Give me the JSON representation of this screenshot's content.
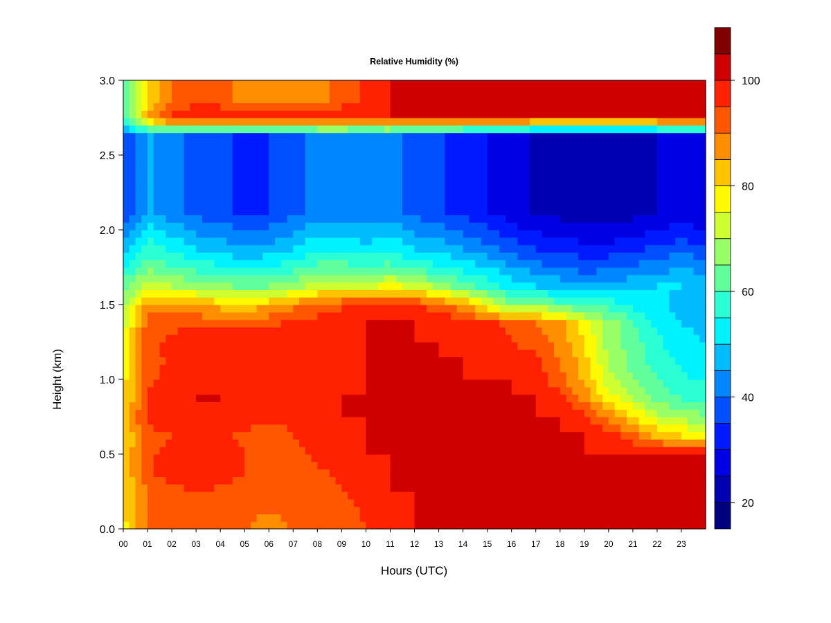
{
  "chart_data": {
    "type": "heatmap",
    "title": "Relative Humidity (%)",
    "xlabel": "Hours (UTC)",
    "ylabel": "Height (km)",
    "xlim": [
      0,
      24
    ],
    "ylim": [
      0.0,
      3.0
    ],
    "x_ticks": [
      "00",
      "01",
      "02",
      "03",
      "04",
      "05",
      "06",
      "07",
      "08",
      "09",
      "10",
      "11",
      "12",
      "13",
      "14",
      "15",
      "16",
      "17",
      "18",
      "19",
      "20",
      "21",
      "22",
      "23"
    ],
    "y_ticks": [
      "0.0",
      "0.5",
      "1.0",
      "1.5",
      "2.0",
      "2.5",
      "3.0"
    ],
    "colorbar": {
      "min": 15,
      "max": 100,
      "step": 5,
      "tick_labels": [
        "20",
        "40",
        "60",
        "80",
        "100"
      ],
      "colors": [
        "#00007f",
        "#0000b2",
        "#0000e5",
        "#001aff",
        "#0050ff",
        "#0086ff",
        "#00bcff",
        "#00f2ff",
        "#2bffd4",
        "#62ff9d",
        "#98ff67",
        "#ceff31",
        "#fffa00",
        "#ffc400",
        "#ff8d00",
        "#ff5700",
        "#ff2100",
        "#ce0000",
        "#800000"
      ]
    },
    "x_hours": [
      0,
      1,
      2,
      3,
      4,
      5,
      6,
      7,
      8,
      9,
      10,
      11,
      12,
      13,
      14,
      15,
      16,
      17,
      18,
      19,
      20,
      21,
      22,
      23,
      24
    ],
    "y_km": [
      0.0,
      0.125,
      0.25,
      0.375,
      0.5,
      0.625,
      0.75,
      0.875,
      1.0,
      1.125,
      1.25,
      1.375,
      1.5,
      1.625,
      1.75,
      1.875,
      2.0,
      2.125,
      2.25,
      2.375,
      2.5,
      2.625,
      2.75,
      2.875,
      3.0
    ],
    "rh_by_hour": [
      [
        78,
        90,
        93,
        94,
        92,
        90,
        89,
        90,
        90,
        92,
        95,
        99,
        100,
        100,
        100,
        100,
        100,
        100,
        100,
        100,
        100,
        100,
        100,
        100,
        100
      ],
      [
        80,
        90,
        92,
        94,
        93,
        91,
        90,
        91,
        92,
        93,
        96,
        99,
        100,
        100,
        100,
        100,
        100,
        100,
        100,
        100,
        100,
        100,
        100,
        100,
        100
      ],
      [
        80,
        90,
        93,
        95,
        94,
        92,
        91,
        92,
        93,
        95,
        97,
        100,
        100,
        100,
        100,
        100,
        100,
        100,
        100,
        100,
        100,
        100,
        100,
        100,
        100
      ],
      [
        80,
        94,
        97,
        99,
        98,
        95,
        93,
        93,
        94,
        96,
        98,
        100,
        100,
        100,
        100,
        100,
        100,
        100,
        100,
        100,
        100,
        100,
        100,
        100,
        100
      ],
      [
        80,
        94,
        97,
        99,
        98,
        95,
        93,
        94,
        96,
        98,
        100,
        100,
        100,
        100,
        100,
        100,
        100,
        100,
        100,
        100,
        100,
        100,
        100,
        100,
        100
      ],
      [
        80,
        92,
        95,
        97,
        96,
        94,
        93,
        95,
        97,
        99,
        100,
        100,
        100,
        100,
        100,
        100,
        100,
        100,
        100,
        100,
        98,
        92,
        84,
        80,
        80
      ],
      [
        80,
        97,
        100,
        100,
        99,
        97,
        96,
        96,
        98,
        100,
        100,
        100,
        100,
        100,
        100,
        100,
        100,
        100,
        100,
        96,
        88,
        80,
        72,
        68,
        66
      ],
      [
        78,
        96,
        99,
        100,
        100,
        97,
        96,
        96,
        98,
        100,
        100,
        100,
        100,
        100,
        100,
        100,
        100,
        100,
        96,
        88,
        78,
        70,
        64,
        60,
        58
      ],
      [
        78,
        94,
        97,
        98,
        98,
        96,
        95,
        95,
        97,
        99,
        100,
        100,
        100,
        100,
        100,
        100,
        100,
        98,
        92,
        84,
        72,
        65,
        60,
        56,
        54
      ],
      [
        76,
        93,
        96,
        97,
        97,
        96,
        95,
        95,
        97,
        99,
        100,
        100,
        100,
        100,
        100,
        99,
        98,
        96,
        90,
        82,
        70,
        63,
        58,
        54,
        52
      ],
      [
        76,
        94,
        96,
        98,
        99,
        100,
        100,
        100,
        100,
        100,
        100,
        100,
        100,
        100,
        99,
        97,
        95,
        93,
        88,
        80,
        68,
        62,
        56,
        52,
        50
      ],
      [
        72,
        92,
        94,
        94,
        93,
        93,
        94,
        96,
        97,
        99,
        100,
        100,
        100,
        99,
        98,
        96,
        94,
        90,
        86,
        78,
        68,
        60,
        54,
        50,
        48
      ],
      [
        68,
        88,
        88,
        85,
        83,
        82,
        84,
        88,
        92,
        94,
        96,
        97,
        96,
        92,
        86,
        76,
        66,
        68,
        62,
        60,
        58,
        54,
        52,
        48,
        48
      ],
      [
        62,
        72,
        70,
        68,
        66,
        64,
        65,
        68,
        72,
        74,
        74,
        76,
        74,
        68,
        62,
        58,
        53,
        50,
        48,
        46,
        47,
        48,
        50,
        50,
        47
      ],
      [
        55,
        64,
        60,
        58,
        56,
        54,
        55,
        58,
        62,
        62,
        60,
        62,
        58,
        56,
        53,
        50,
        46,
        42,
        40,
        38,
        39,
        41,
        43,
        45,
        43
      ],
      [
        48,
        58,
        54,
        50,
        48,
        46,
        47,
        50,
        54,
        54,
        52,
        54,
        50,
        48,
        45,
        42,
        38,
        35,
        34,
        32,
        32,
        34,
        36,
        38,
        36
      ],
      [
        42,
        52,
        48,
        44,
        42,
        40,
        41,
        44,
        48,
        48,
        46,
        48,
        44,
        42,
        39,
        36,
        32,
        29,
        28,
        26,
        26,
        28,
        30,
        32,
        30
      ],
      [
        35,
        46,
        42,
        38,
        36,
        34,
        35,
        38,
        42,
        42,
        40,
        42,
        38,
        36,
        33,
        30,
        27,
        24,
        23,
        21,
        21,
        23,
        25,
        27,
        25
      ],
      [
        35,
        46,
        42,
        38,
        36,
        34,
        35,
        38,
        42,
        42,
        40,
        42,
        38,
        36,
        33,
        30,
        27,
        24,
        23,
        21,
        21,
        23,
        25,
        27,
        25
      ],
      [
        35,
        46,
        42,
        38,
        36,
        34,
        35,
        38,
        42,
        42,
        40,
        42,
        38,
        36,
        33,
        30,
        27,
        24,
        23,
        21,
        21,
        23,
        25,
        27,
        25
      ],
      [
        35,
        46,
        42,
        38,
        36,
        34,
        35,
        38,
        42,
        42,
        40,
        42,
        38,
        36,
        33,
        30,
        27,
        24,
        23,
        21,
        21,
        23,
        25,
        27,
        25
      ],
      [
        35,
        46,
        42,
        38,
        36,
        34,
        35,
        38,
        42,
        42,
        40,
        42,
        38,
        36,
        33,
        30,
        27,
        24,
        23,
        21,
        21,
        23,
        25,
        27,
        25
      ],
      [
        58,
        86,
        98,
        100,
        100,
        100,
        100,
        100,
        100,
        100,
        100,
        100,
        100,
        100,
        100,
        100,
        100,
        100,
        100,
        100,
        100,
        100,
        100,
        100,
        100
      ],
      [
        58,
        80,
        90,
        93,
        92,
        88,
        86,
        85,
        88,
        92,
        96,
        100,
        100,
        100,
        100,
        100,
        100,
        100,
        100,
        100,
        100,
        100,
        100,
        100,
        100
      ],
      [
        58,
        80,
        90,
        93,
        92,
        88,
        86,
        85,
        88,
        92,
        96,
        100,
        100,
        100,
        100,
        100,
        100,
        100,
        100,
        100,
        100,
        100,
        100,
        100,
        100
      ]
    ]
  }
}
